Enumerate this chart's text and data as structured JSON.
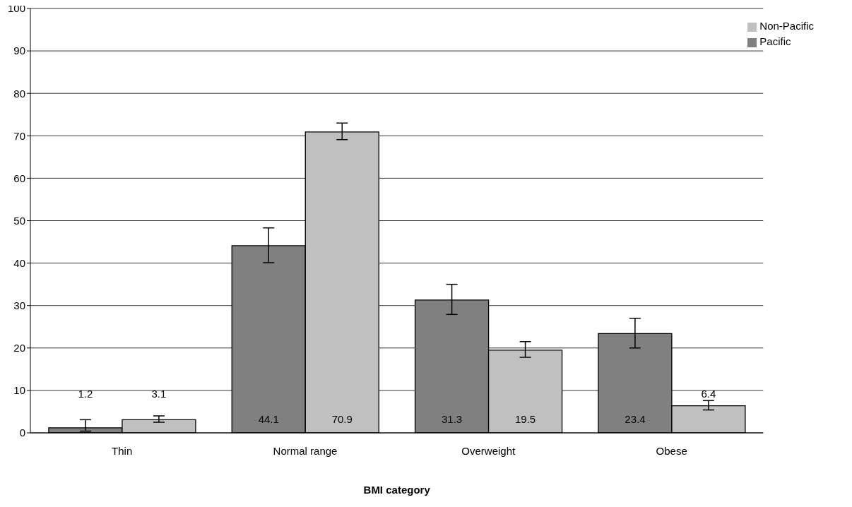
{
  "chart_data": {
    "type": "bar",
    "xlabel": "BMI category",
    "categories": [
      "Thin",
      "Normal range",
      "Overweight",
      "Obese"
    ],
    "series": [
      {
        "name": "Pacific",
        "color": "#808080",
        "values": [
          1.2,
          44.1,
          31.3,
          23.4
        ],
        "errors": [
          [
            0.4,
            3.1
          ],
          [
            40.1,
            48.3
          ],
          [
            27.9,
            35.0
          ],
          [
            20.0,
            27.0
          ]
        ]
      },
      {
        "name": "Non-Pacific",
        "color": "#c0c0c0",
        "values": [
          3.1,
          70.9,
          19.5,
          6.4
        ],
        "errors": [
          [
            2.5,
            4.0
          ],
          [
            69.1,
            73.0
          ],
          [
            17.8,
            21.5
          ],
          [
            5.4,
            7.6
          ]
        ]
      }
    ],
    "ylim": [
      0,
      100
    ],
    "yticks": [
      0,
      10,
      20,
      30,
      40,
      50,
      60,
      70,
      80,
      90,
      100
    ],
    "grid": "y",
    "legend": "top right",
    "data_labels": true
  }
}
